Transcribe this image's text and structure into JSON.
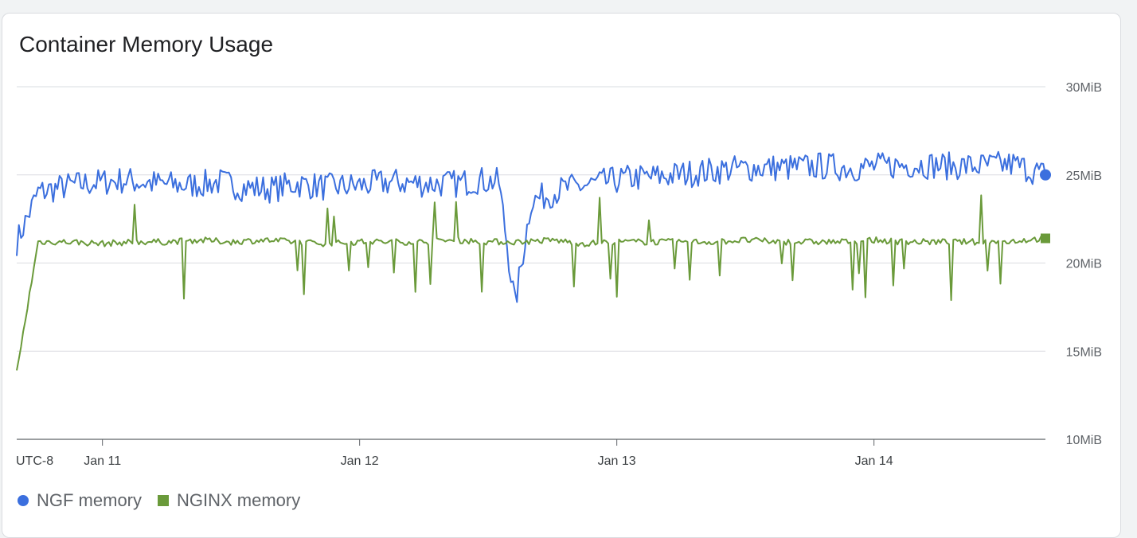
{
  "card": {
    "title": "Container Memory Usage"
  },
  "chart_data": {
    "type": "line",
    "title": "Container Memory Usage",
    "yunit": "MiB",
    "ylim": [
      10,
      30
    ],
    "yticks": [
      "10MiB",
      "15MiB",
      "20MiB",
      "25MiB",
      "30MiB"
    ],
    "ytick_values": [
      10,
      15,
      20,
      25,
      30
    ],
    "xlim": [
      "2025-01-10 16:00",
      "2025-01-14 16:00"
    ],
    "xticks": [
      "Jan 11",
      "Jan 12",
      "Jan 13",
      "Jan 14"
    ],
    "timezone_label": "UTC-8",
    "grid": true,
    "legend": "bottom-left",
    "series": [
      {
        "name": "NGF memory",
        "color": "#3b6fde",
        "marker": "circle",
        "x": [
          "Jan 10 16:00",
          "Jan 10 18:00",
          "Jan 10 21:00",
          "Jan 11 00:00",
          "Jan 11 02:00",
          "Jan 11 05:00",
          "Jan 11 08:00",
          "Jan 11 11:00",
          "Jan 11 13:00",
          "Jan 11 16:00",
          "Jan 11 18:00",
          "Jan 11 21:00",
          "Jan 12 00:00",
          "Jan 12 03:00",
          "Jan 12 06:00",
          "Jan 12 09:00",
          "Jan 12 11:00",
          "Jan 12 13:00",
          "Jan 12 14:30",
          "Jan 12 16:00",
          "Jan 12 19:00",
          "Jan 12 22:00",
          "Jan 13 01:00",
          "Jan 13 04:00",
          "Jan 13 07:00",
          "Jan 13 10:00",
          "Jan 13 13:00",
          "Jan 13 16:00",
          "Jan 13 19:00",
          "Jan 13 22:00",
          "Jan 14 01:00",
          "Jan 14 04:00",
          "Jan 14 07:00",
          "Jan 14 10:00",
          "Jan 14 13:00",
          "Jan 14 16:00"
        ],
        "values": [
          21.2,
          24.0,
          24.4,
          24.6,
          24.7,
          24.5,
          24.4,
          24.6,
          24.3,
          24.2,
          24.5,
          24.3,
          24.4,
          24.6,
          24.5,
          24.5,
          24.7,
          24.6,
          17.6,
          23.5,
          24.2,
          24.5,
          24.8,
          24.9,
          25.1,
          25.3,
          25.4,
          25.4,
          25.5,
          25.4,
          25.5,
          25.6,
          25.5,
          25.5,
          25.6,
          25.0
        ]
      },
      {
        "name": "NGINX memory",
        "color": "#6a9a3a",
        "marker": "square",
        "x": [
          "Jan 10 16:00",
          "Jan 10 18:00",
          "Jan 10 21:00",
          "Jan 11 00:00",
          "Jan 11 03:00",
          "Jan 11 06:00",
          "Jan 11 09:00",
          "Jan 11 12:00",
          "Jan 11 15:00",
          "Jan 11 18:00",
          "Jan 11 21:00",
          "Jan 12 00:00",
          "Jan 12 03:00",
          "Jan 12 06:00",
          "Jan 12 09:00",
          "Jan 12 12:00",
          "Jan 12 15:00",
          "Jan 12 18:00",
          "Jan 12 21:00",
          "Jan 13 00:00",
          "Jan 13 03:00",
          "Jan 13 06:00",
          "Jan 13 09:00",
          "Jan 13 12:00",
          "Jan 13 15:00",
          "Jan 13 18:00",
          "Jan 13 21:00",
          "Jan 14 00:00",
          "Jan 14 03:00",
          "Jan 14 06:00",
          "Jan 14 09:00",
          "Jan 14 12:00",
          "Jan 14 16:00"
        ],
        "values": [
          13.8,
          21.2,
          21.2,
          21.1,
          21.2,
          21.2,
          21.3,
          21.2,
          21.3,
          21.2,
          21.1,
          21.2,
          21.2,
          21.2,
          21.3,
          21.2,
          21.2,
          21.3,
          21.1,
          21.2,
          21.2,
          21.2,
          21.2,
          21.3,
          21.2,
          21.2,
          21.2,
          21.3,
          21.2,
          21.2,
          21.2,
          21.2,
          21.4
        ]
      }
    ]
  }
}
